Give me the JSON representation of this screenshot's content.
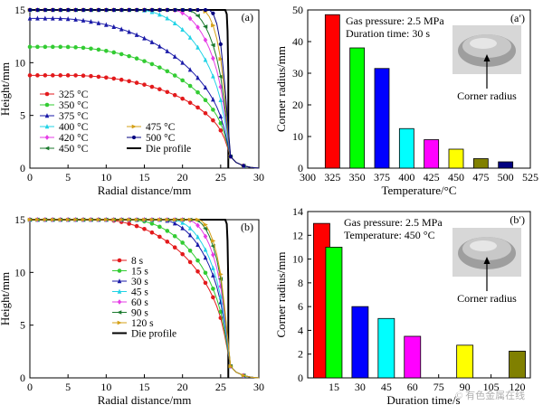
{
  "watermark": "© 有色金属在线",
  "panels": [
    {
      "id": "a",
      "tag": "(a)",
      "chart_data": {
        "type": "line",
        "xlabel": "Radial distance/mm",
        "ylabel": "Height/mm",
        "xlim": [
          0,
          30
        ],
        "ylim": [
          0,
          15
        ],
        "xticks": [
          0,
          5,
          10,
          15,
          20,
          25,
          30
        ],
        "yticks": [
          0,
          5,
          10,
          15
        ],
        "legend": {
          "placement": "bottom-left",
          "columns": 2
        },
        "die_profile": {
          "name": "Die profile",
          "color": "#000000",
          "points": [
            [
              0,
              15
            ],
            [
              25.6,
              15
            ],
            [
              25.8,
              14.6
            ],
            [
              25.9,
              13
            ],
            [
              26,
              9
            ],
            [
              26,
              0
            ]
          ]
        },
        "series": [
          {
            "name": "325 °C",
            "color": "#e31a1c",
            "marker": "circle",
            "h0": 8.8,
            "knee": 5,
            "rEnd": 25.8
          },
          {
            "name": "350 °C",
            "color": "#33cc33",
            "marker": "circle",
            "h0": 11.5,
            "knee": 4,
            "rEnd": 25.8
          },
          {
            "name": "375 °C",
            "color": "#1a1aa8",
            "marker": "triangle",
            "h0": 14.2,
            "knee": 3,
            "rEnd": 25.8
          },
          {
            "name": "400 °C",
            "color": "#22d3e6",
            "marker": "triangle",
            "h0": 15,
            "knee": 14,
            "rEnd": 25.8
          },
          {
            "name": "420 °C",
            "color": "#e63ce6",
            "marker": "diamond",
            "h0": 15,
            "knee": 18.5,
            "rEnd": 25.8
          },
          {
            "name": "450 °C",
            "color": "#1b7a2e",
            "marker": "triangle-left",
            "h0": 15,
            "knee": 20.5,
            "rEnd": 25.8
          },
          {
            "name": "475 °C",
            "color": "#d4a017",
            "marker": "triangle-right",
            "h0": 15,
            "knee": 22.5,
            "rEnd": 25.8
          },
          {
            "name": "500 °C",
            "color": "#000080",
            "marker": "hexagon",
            "h0": 15,
            "knee": 23.5,
            "rEnd": 25.8
          }
        ]
      }
    },
    {
      "id": "a2",
      "tag": "(a′)",
      "chart_data": {
        "type": "bar",
        "xlabel": "Temperature/°C",
        "ylabel": "Corner radius/mm",
        "xlim": [
          300,
          525
        ],
        "ylim": [
          0,
          50
        ],
        "xticks": [
          300,
          325,
          350,
          375,
          400,
          425,
          450,
          475,
          500,
          525
        ],
        "yticks": [
          0,
          10,
          20,
          30,
          40,
          50
        ],
        "annotations": [
          "Gas pressure: 2.5 MPa",
          "Duration time: 30 s"
        ],
        "inset_label": "Corner radius",
        "bars": [
          {
            "x": 325,
            "value": 48.5,
            "color": "#ff0000"
          },
          {
            "x": 350,
            "value": 38,
            "color": "#00ff00"
          },
          {
            "x": 375,
            "value": 31.5,
            "color": "#0000ff"
          },
          {
            "x": 400,
            "value": 12.5,
            "color": "#00ffff"
          },
          {
            "x": 425,
            "value": 9,
            "color": "#ff00ff"
          },
          {
            "x": 450,
            "value": 6,
            "color": "#ffff00"
          },
          {
            "x": 475,
            "value": 3,
            "color": "#808000"
          },
          {
            "x": 500,
            "value": 2,
            "color": "#000080"
          }
        ]
      }
    },
    {
      "id": "b",
      "tag": "(b)",
      "chart_data": {
        "type": "line",
        "xlabel": "Radial distance/mm",
        "ylabel": "Height/mm",
        "xlim": [
          0,
          30
        ],
        "ylim": [
          0,
          15
        ],
        "xticks": [
          0,
          5,
          10,
          15,
          20,
          25,
          30
        ],
        "yticks": [
          0,
          5,
          10,
          15
        ],
        "legend": {
          "placement": "center-left",
          "columns": 1
        },
        "die_profile": {
          "name": "Die profile",
          "color": "#000000",
          "points": [
            [
              0,
              15
            ],
            [
              25.6,
              15
            ],
            [
              25.8,
              14.6
            ],
            [
              25.9,
              13
            ],
            [
              26,
              9
            ],
            [
              26,
              0
            ]
          ]
        },
        "series": [
          {
            "name": "8 s",
            "color": "#e31a1c",
            "marker": "circle",
            "h0": 15,
            "knee": 9,
            "rEnd": 25.8
          },
          {
            "name": "15 s",
            "color": "#33cc33",
            "marker": "circle",
            "h0": 15,
            "knee": 13,
            "rEnd": 25.8
          },
          {
            "name": "30 s",
            "color": "#1a1aa8",
            "marker": "triangle",
            "h0": 15,
            "knee": 17,
            "rEnd": 25.8
          },
          {
            "name": "45 s",
            "color": "#22d3e6",
            "marker": "triangle",
            "h0": 15,
            "knee": 18.5,
            "rEnd": 25.8
          },
          {
            "name": "60 s",
            "color": "#e63ce6",
            "marker": "diamond",
            "h0": 15,
            "knee": 20.5,
            "rEnd": 25.8
          },
          {
            "name": "90 s",
            "color": "#1b7a2e",
            "marker": "triangle-left",
            "h0": 15,
            "knee": 21.5,
            "rEnd": 25.8
          },
          {
            "name": "120 s",
            "color": "#d4a017",
            "marker": "triangle-right",
            "h0": 15,
            "knee": 22,
            "rEnd": 25.8
          }
        ]
      }
    },
    {
      "id": "b2",
      "tag": "(b′)",
      "chart_data": {
        "type": "bar",
        "xlabel": "Duration time/s",
        "ylabel": "Corner radius/mm",
        "xlim": [
          0,
          127.5
        ],
        "ylim": [
          0,
          14
        ],
        "xticks": [
          15,
          30,
          45,
          60,
          75,
          90,
          105,
          120
        ],
        "yticks": [
          0,
          2,
          4,
          6,
          8,
          10,
          12,
          14
        ],
        "annotations": [
          "Gas pressure: 2.5 MPa",
          "Temperature: 450 °C"
        ],
        "inset_label": "Corner radius",
        "bars": [
          {
            "x": 8,
            "value": 13,
            "color": "#ff0000"
          },
          {
            "x": 15,
            "value": 11,
            "color": "#00ff00"
          },
          {
            "x": 30,
            "value": 6,
            "color": "#0000ff"
          },
          {
            "x": 45,
            "value": 5,
            "color": "#00ffff"
          },
          {
            "x": 60,
            "value": 3.5,
            "color": "#ff00ff"
          },
          {
            "x": 90,
            "value": 2.75,
            "color": "#ffff00"
          },
          {
            "x": 120,
            "value": 2.25,
            "color": "#808000"
          }
        ]
      }
    }
  ]
}
